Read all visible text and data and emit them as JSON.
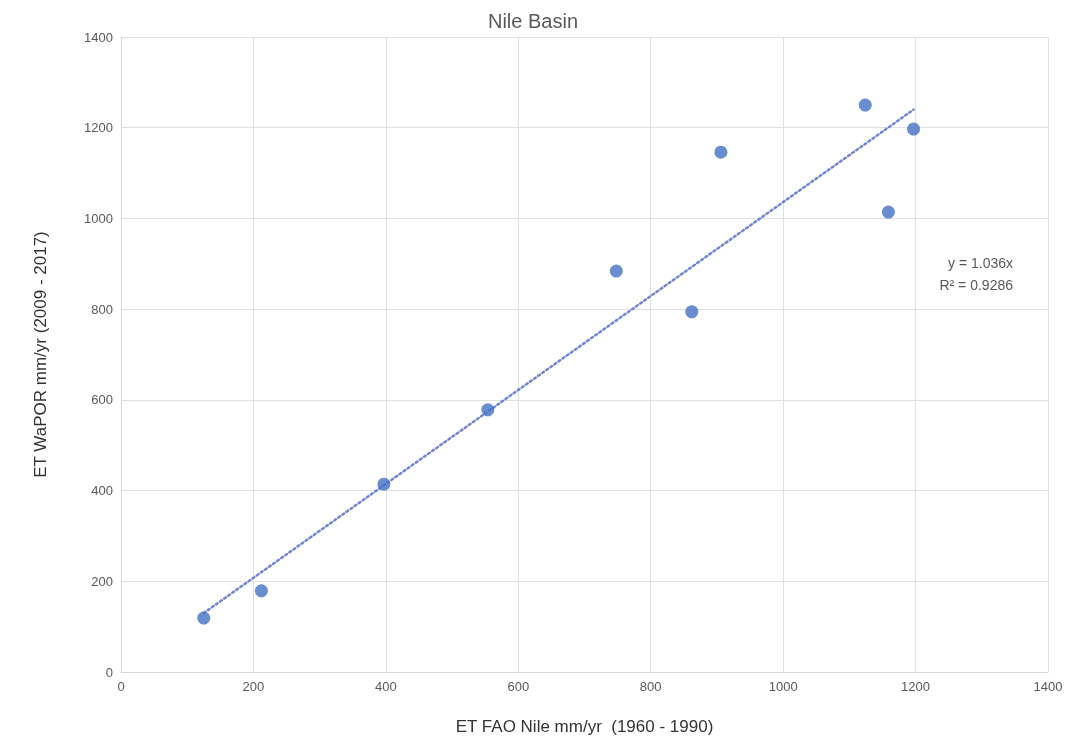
{
  "chart_data": {
    "type": "scatter",
    "title": "Nile Basin",
    "xlabel": "ET FAO Nile mm/yr  (1960 - 1990)",
    "ylabel": "ET WaPOR mm/yr (2009 - 2017)",
    "series": [
      {
        "color": "#4472c4",
        "marker": "circle",
        "x": [
          125,
          212,
          397,
          554,
          748,
          862,
          906,
          1124,
          1197,
          1159
        ],
        "values": [
          119,
          179,
          414,
          578,
          884,
          794,
          1146,
          1250,
          1197,
          1014
        ]
      },
      {
        "type": "line",
        "color": "#6f86d4",
        "line_style": "dotted",
        "marker": "none",
        "x": [
          125,
          1197
        ],
        "values": [
          130,
          1240
        ]
      }
    ],
    "xlim": [
      0,
      1400
    ],
    "xticks": [
      0,
      200,
      400,
      600,
      800,
      1000,
      1200,
      1400
    ],
    "ylim": [
      0,
      1400
    ],
    "yticks": [
      0,
      200,
      400,
      600,
      800,
      1000,
      1200,
      1400
    ],
    "grid": true,
    "annotations": [
      "y = 1.036x",
      "R² = 0.9286"
    ]
  }
}
